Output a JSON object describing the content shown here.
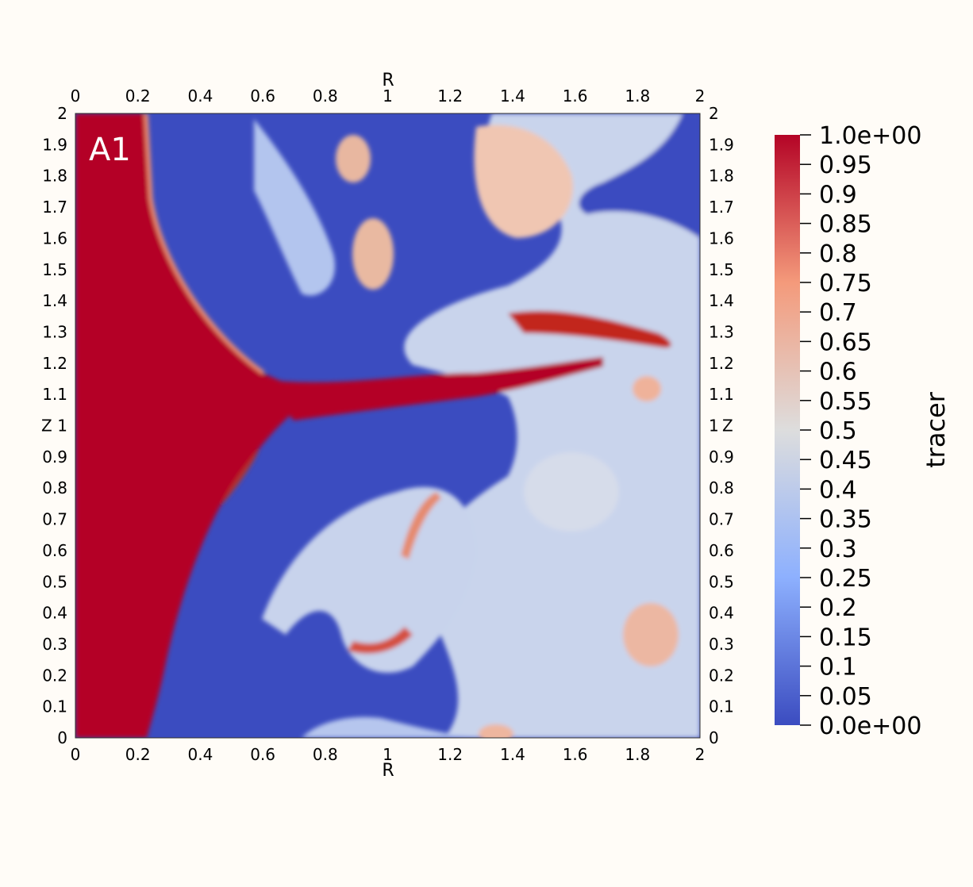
{
  "chart_data": {
    "type": "heatmap",
    "panel_label": "A1",
    "xlabel": "R",
    "ylabel": "Z",
    "xlim": [
      0,
      2
    ],
    "ylim": [
      0,
      2
    ],
    "x_ticks": [
      "0",
      "0.2",
      "0.4",
      "0.6",
      "0.8",
      "1",
      "1.2",
      "1.4",
      "1.6",
      "1.8",
      "2"
    ],
    "y_ticks": [
      "0",
      "0.1",
      "0.2",
      "0.3",
      "0.4",
      "0.5",
      "0.6",
      "0.7",
      "0.8",
      "0.9",
      "1",
      "1.1",
      "1.2",
      "1.3",
      "1.4",
      "1.5",
      "1.6",
      "1.7",
      "1.8",
      "1.9",
      "2"
    ],
    "colorbar": {
      "title": "tracer",
      "range": [
        0,
        1
      ],
      "colormap": "Cool to Warm",
      "colors": [
        "#3b4cc0",
        "#8db0fe",
        "#dddddd",
        "#f49a7b",
        "#b40426"
      ],
      "ticks": [
        "0.0e+00",
        "0.05",
        "0.1",
        "0.15",
        "0.2",
        "0.25",
        "0.3",
        "0.35",
        "0.4",
        "0.45",
        "0.5",
        "0.55",
        "0.6",
        "0.65",
        "0.7",
        "0.75",
        "0.8",
        "0.85",
        "0.9",
        "0.95",
        "1.0e+00"
      ]
    },
    "field_features": [
      {
        "region": "left column",
        "r_range": [
          0,
          0.22
        ],
        "z_range": [
          0,
          2
        ],
        "tracer": 1.0
      },
      {
        "region": "central jet",
        "r_range": [
          0.65,
          1.6
        ],
        "z_range": [
          1.05,
          1.2
        ],
        "tracer": 0.95
      },
      {
        "region": "lower lobe",
        "r_range": [
          0.25,
          1.4
        ],
        "z_range": [
          0,
          0.95
        ],
        "tracer": 0.0
      },
      {
        "region": "upper lobe",
        "r_range": [
          0.25,
          1.4
        ],
        "z_range": [
          1.2,
          2
        ],
        "tracer": 0.0
      },
      {
        "region": "mixed turbulent zone",
        "r_range": [
          1.4,
          2
        ],
        "z_range": [
          0,
          2
        ],
        "tracer": 0.5
      }
    ]
  }
}
